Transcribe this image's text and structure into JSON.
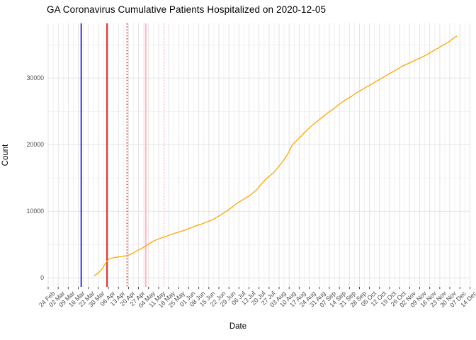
{
  "chart_data": {
    "type": "line",
    "title": "GA Coronavirus Cumulative Patients Hospitalized on 2020-12-05",
    "xlabel": "Date",
    "ylabel": "Count",
    "grid": true,
    "legend": "none",
    "x_domain": [
      "2020-02-24",
      "2020-12-14"
    ],
    "x_tick_interval_days": 7,
    "x_tick_labels": [
      "24 Feb",
      "02 Mar",
      "09 Mar",
      "16 Mar",
      "23 Mar",
      "30 Mar",
      "06 Apr",
      "13 Apr",
      "20 Apr",
      "27 Apr",
      "04 May",
      "11 May",
      "18 May",
      "25 May",
      "01 Jun",
      "08 Jun",
      "15 Jun",
      "22 Jun",
      "29 Jun",
      "06 Jul",
      "13 Jul",
      "20 Jul",
      "27 Jul",
      "03 Aug",
      "10 Aug",
      "17 Aug",
      "24 Aug",
      "31 Aug",
      "07 Sep",
      "14 Sep",
      "21 Sep",
      "28 Sep",
      "05 Oct",
      "12 Oct",
      "19 Oct",
      "26 Oct",
      "02 Nov",
      "09 Nov",
      "16 Nov",
      "23 Nov",
      "30 Nov",
      "07 Dec",
      "14 Dec"
    ],
    "y_ticks": [
      0,
      10000,
      20000,
      30000
    ],
    "y_minor_ticks": [
      5000,
      15000,
      25000,
      35000
    ],
    "ylim": [
      0,
      38000
    ],
    "colors": {
      "series": "#FFA500",
      "grid_major": "#e3e3e3",
      "grid_minor": "#f1f1f1",
      "axis_text": "#4d4d4d",
      "tick_mark": "#333333"
    },
    "vlines": [
      {
        "name": "blue-solid-event-line",
        "date": "2020-03-18",
        "color": "#0000dd",
        "style": "solid",
        "width": 1.6
      },
      {
        "name": "red-solid-event-line",
        "date": "2020-04-05",
        "color": "#dd0000",
        "style": "solid",
        "width": 1.6
      },
      {
        "name": "red-dotted-event-line",
        "date": "2020-04-19",
        "color": "#dd0000",
        "style": "dotted",
        "width": 1.4
      },
      {
        "name": "pink-solid-event-line",
        "date": "2020-05-02",
        "color": "#ffb6c1",
        "style": "solid",
        "width": 2.2
      },
      {
        "name": "pink-dotted-event-line",
        "date": "2020-05-15",
        "color": "#ffc6ce",
        "style": "dotted",
        "width": 1.4
      }
    ],
    "series": [
      {
        "name": "cumulative_patients_hospitalized",
        "color": "#FFA500",
        "points": [
          [
            "2020-03-27",
            290
          ],
          [
            "2020-03-29",
            600
          ],
          [
            "2020-03-31",
            950
          ],
          [
            "2020-04-02",
            1500
          ],
          [
            "2020-04-04",
            2200
          ],
          [
            "2020-04-06",
            2800
          ],
          [
            "2020-04-08",
            2950
          ],
          [
            "2020-04-11",
            3080
          ],
          [
            "2020-04-14",
            3180
          ],
          [
            "2020-04-17",
            3280
          ],
          [
            "2020-04-20",
            3400
          ],
          [
            "2020-04-23",
            3700
          ],
          [
            "2020-04-26",
            4100
          ],
          [
            "2020-04-29",
            4400
          ],
          [
            "2020-05-02",
            4800
          ],
          [
            "2020-05-05",
            5200
          ],
          [
            "2020-05-08",
            5600
          ],
          [
            "2020-05-11",
            5850
          ],
          [
            "2020-05-14",
            6100
          ],
          [
            "2020-05-17",
            6300
          ],
          [
            "2020-05-20",
            6550
          ],
          [
            "2020-05-23",
            6750
          ],
          [
            "2020-05-26",
            6950
          ],
          [
            "2020-05-29",
            7150
          ],
          [
            "2020-06-01",
            7400
          ],
          [
            "2020-06-04",
            7650
          ],
          [
            "2020-06-07",
            7900
          ],
          [
            "2020-06-10",
            8100
          ],
          [
            "2020-06-13",
            8350
          ],
          [
            "2020-06-16",
            8600
          ],
          [
            "2020-06-19",
            8900
          ],
          [
            "2020-06-22",
            9300
          ],
          [
            "2020-06-25",
            9700
          ],
          [
            "2020-06-28",
            10100
          ],
          [
            "2020-07-01",
            10600
          ],
          [
            "2020-07-04",
            11100
          ],
          [
            "2020-07-07",
            11500
          ],
          [
            "2020-07-10",
            11900
          ],
          [
            "2020-07-13",
            12300
          ],
          [
            "2020-07-16",
            12800
          ],
          [
            "2020-07-19",
            13400
          ],
          [
            "2020-07-22",
            14200
          ],
          [
            "2020-07-25",
            14900
          ],
          [
            "2020-07-28",
            15400
          ],
          [
            "2020-07-31",
            16000
          ],
          [
            "2020-08-03",
            16800
          ],
          [
            "2020-08-06",
            17600
          ],
          [
            "2020-08-09",
            18600
          ],
          [
            "2020-08-12",
            19900
          ],
          [
            "2020-08-15",
            20600
          ],
          [
            "2020-08-18",
            21200
          ],
          [
            "2020-08-21",
            21900
          ],
          [
            "2020-08-24",
            22500
          ],
          [
            "2020-08-27",
            23100
          ],
          [
            "2020-08-30",
            23600
          ],
          [
            "2020-09-02",
            24100
          ],
          [
            "2020-09-06",
            24800
          ],
          [
            "2020-09-10",
            25400
          ],
          [
            "2020-09-14",
            26100
          ],
          [
            "2020-09-18",
            26700
          ],
          [
            "2020-09-22",
            27200
          ],
          [
            "2020-09-26",
            27800
          ],
          [
            "2020-09-30",
            28300
          ],
          [
            "2020-10-04",
            28800
          ],
          [
            "2020-10-08",
            29300
          ],
          [
            "2020-10-12",
            29800
          ],
          [
            "2020-10-16",
            30300
          ],
          [
            "2020-10-20",
            30800
          ],
          [
            "2020-10-24",
            31300
          ],
          [
            "2020-10-28",
            31800
          ],
          [
            "2020-11-01",
            32200
          ],
          [
            "2020-11-05",
            32600
          ],
          [
            "2020-11-09",
            33000
          ],
          [
            "2020-11-13",
            33400
          ],
          [
            "2020-11-17",
            33900
          ],
          [
            "2020-11-21",
            34400
          ],
          [
            "2020-11-25",
            34900
          ],
          [
            "2020-11-29",
            35400
          ],
          [
            "2020-12-02",
            35900
          ],
          [
            "2020-12-05",
            36350
          ]
        ]
      }
    ]
  }
}
